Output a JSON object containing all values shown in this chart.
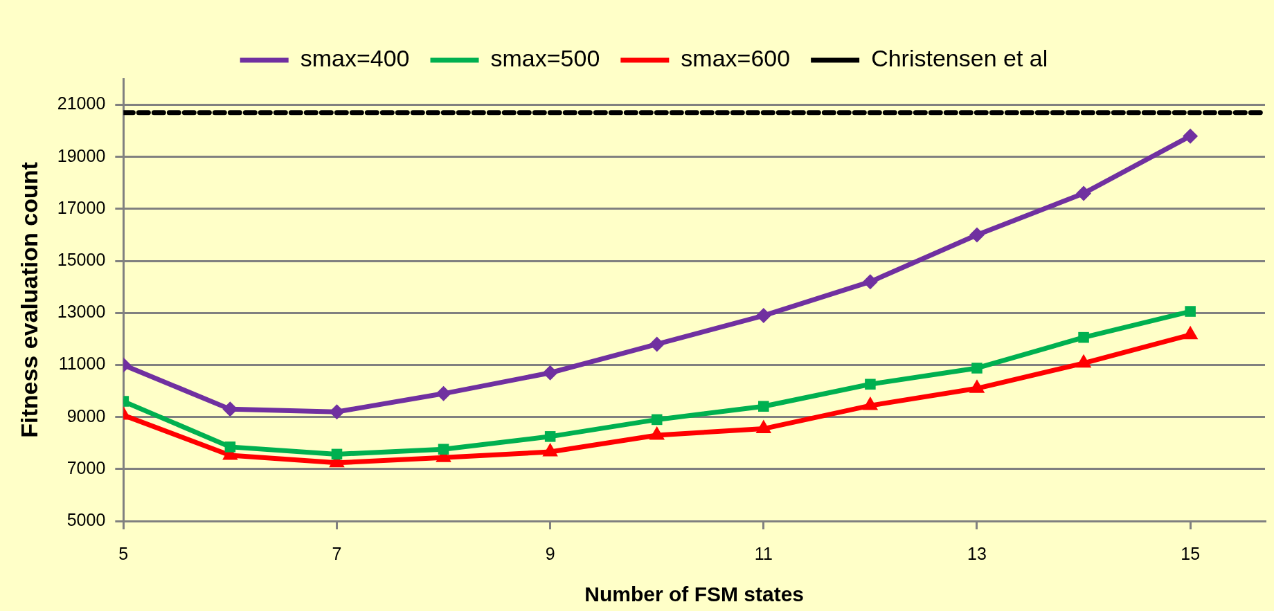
{
  "chart_data": {
    "type": "line",
    "xlabel": "Number of FSM states",
    "ylabel": "Fitness evaluation count",
    "x": [
      5,
      6,
      7,
      8,
      9,
      10,
      11,
      12,
      13,
      14,
      15
    ],
    "series": [
      {
        "name": "smax=400",
        "color": "#7030a0",
        "marker": "diamond",
        "values": [
          11000,
          9300,
          9200,
          9900,
          10700,
          11800,
          12900,
          14200,
          16000,
          17600,
          19800
        ]
      },
      {
        "name": "smax=500",
        "color": "#00b050",
        "marker": "square",
        "values": [
          9600,
          7850,
          7570,
          7760,
          8250,
          8900,
          9410,
          10260,
          10880,
          12060,
          13060
        ]
      },
      {
        "name": "smax=600",
        "color": "#ff0000",
        "marker": "triangle",
        "values": [
          9070,
          7530,
          7240,
          7440,
          7660,
          8300,
          8550,
          9440,
          10100,
          11070,
          12160
        ]
      },
      {
        "name": "Christensen et al",
        "color": "#000000",
        "marker": "none",
        "line_style": "dashed",
        "x": [
          5,
          15.7
        ],
        "values": [
          20700,
          20700
        ]
      }
    ],
    "xlim": [
      5,
      15.7
    ],
    "xticks": [
      5,
      7,
      9,
      11,
      13,
      15
    ],
    "ylim": [
      5000,
      22000
    ],
    "yticks": [
      5000,
      7000,
      9000,
      11000,
      13000,
      15000,
      17000,
      19000,
      21000
    ],
    "grid": "y",
    "legend": "top",
    "line_style": "solid"
  }
}
